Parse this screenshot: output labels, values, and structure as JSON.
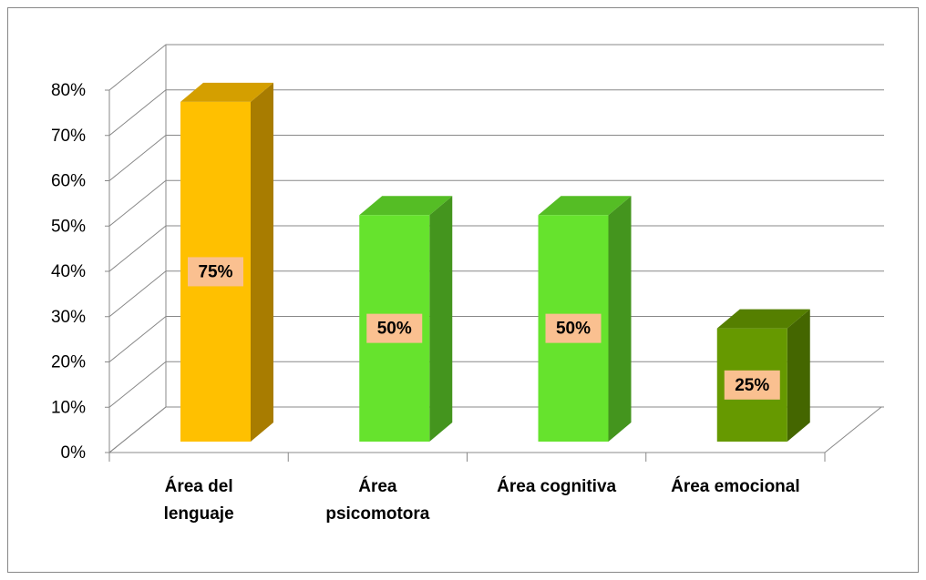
{
  "chart_data": {
    "type": "bar3d",
    "categories": [
      [
        "Área del",
        "lenguaje"
      ],
      [
        "Área",
        "psicomotora"
      ],
      [
        "Área  cognitiva"
      ],
      [
        "Área emocional"
      ]
    ],
    "values": [
      75,
      50,
      50,
      25
    ],
    "value_labels": [
      "75%",
      "50%",
      "50%",
      "25%"
    ],
    "colors": [
      "#ffc000",
      "#66e32d",
      "#66e32d",
      "#669900"
    ],
    "side_colors": [
      "#a87c00",
      "#44951e",
      "#44951e",
      "#446600"
    ],
    "top_colors": [
      "#d49f00",
      "#55bd25",
      "#55bd25",
      "#557f00"
    ],
    "label_background": "#fac090",
    "ylim": [
      0,
      80
    ],
    "yticks": [
      {
        "value": 0,
        "label": "0%"
      },
      {
        "value": 10,
        "label": "10%"
      },
      {
        "value": 20,
        "label": "20%"
      },
      {
        "value": 30,
        "label": "30%"
      },
      {
        "value": 40,
        "label": "40%"
      },
      {
        "value": 50,
        "label": "50%"
      },
      {
        "value": 60,
        "label": "60%"
      },
      {
        "value": 70,
        "label": "70%"
      },
      {
        "value": 80,
        "label": "80%"
      }
    ],
    "grid": true
  }
}
